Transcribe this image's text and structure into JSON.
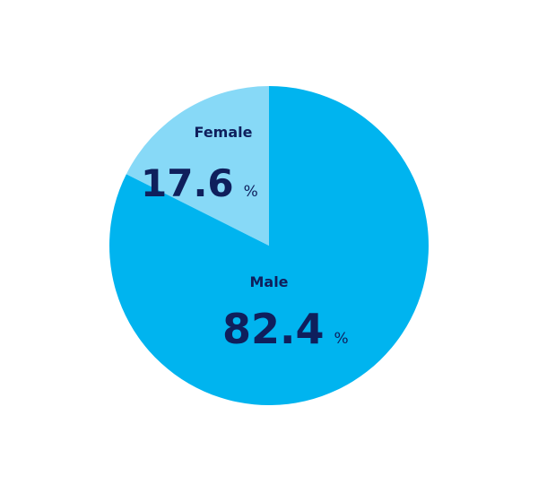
{
  "chart_data": {
    "type": "pie",
    "start_angle_deg": 0,
    "direction": "clockwise",
    "unit": "%",
    "slices": [
      {
        "name": "Male",
        "value": 82.4,
        "color": "#00B4EF"
      },
      {
        "name": "Female",
        "value": 17.6,
        "color": "#87D9F7"
      }
    ],
    "label_color": "#0F1F5C"
  }
}
